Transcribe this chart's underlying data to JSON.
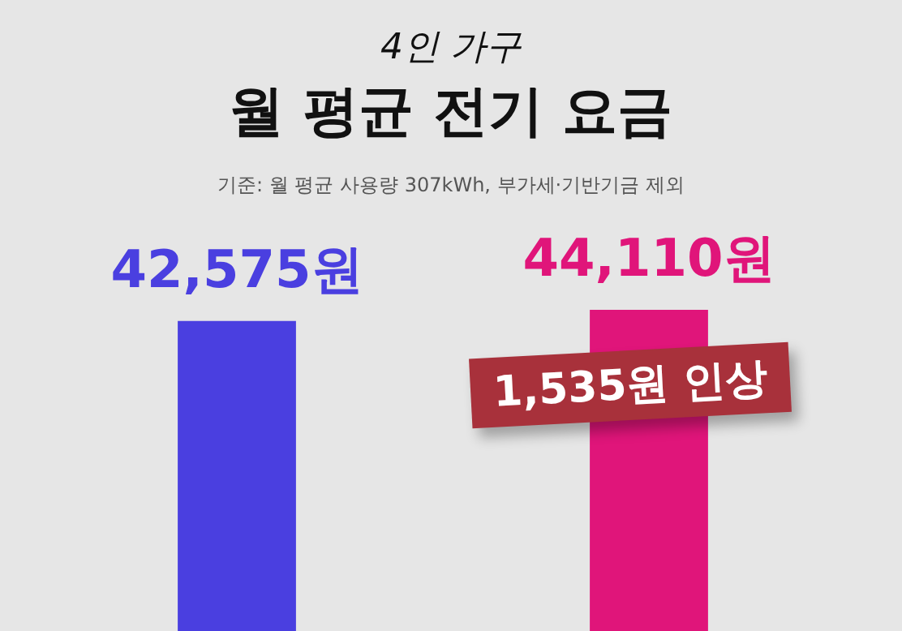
{
  "chart_data": {
    "type": "bar",
    "subtitle": "4인 가구",
    "title": "월 평균 전기 요금",
    "annotations": [
      "기준: 월 평균 사용량 307kWh, 부가세·기반기금 제외",
      "1,535원 인상"
    ],
    "categories": [
      null,
      null
    ],
    "values": [
      42575,
      44110
    ],
    "colors": [
      "#4a3fe0",
      "#e0157a"
    ],
    "value_labels": [
      "42,575원",
      "44,110원"
    ],
    "tick_labels": false
  }
}
